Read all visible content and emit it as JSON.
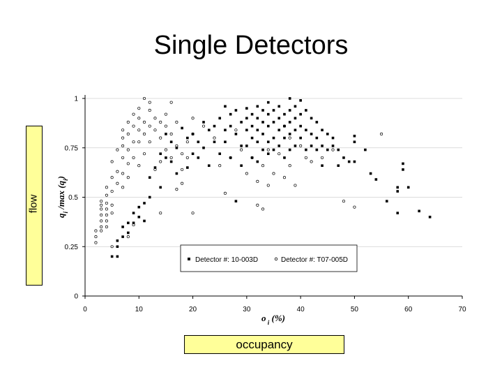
{
  "slide": {
    "title": "Single Detectors",
    "ylabel_box": "flow",
    "xlabel_box": "occupancy"
  },
  "chart_data": {
    "type": "scatter",
    "xlabel": "o i (%)",
    "ylabel": "q i /max (q i )",
    "xlim": [
      0,
      70
    ],
    "ylim": [
      0,
      1
    ],
    "xticks": [
      0,
      10,
      20,
      30,
      40,
      50,
      60,
      70
    ],
    "yticks": [
      0,
      0.25,
      0.5,
      0.75,
      1
    ],
    "ytick_labels": [
      "0",
      "0.25",
      "0.5",
      "0.75",
      "1"
    ],
    "grid": "horizontal",
    "legend_position": "bottom-right",
    "series": [
      {
        "name": "Detector #: 10-003D",
        "marker": "filled-square",
        "color": "#000000",
        "points": [
          [
            5,
            0.2
          ],
          [
            6,
            0.2
          ],
          [
            6,
            0.25
          ],
          [
            6,
            0.28
          ],
          [
            7,
            0.3
          ],
          [
            7,
            0.35
          ],
          [
            8,
            0.32
          ],
          [
            8,
            0.37
          ],
          [
            9,
            0.37
          ],
          [
            9,
            0.42
          ],
          [
            10,
            0.4
          ],
          [
            10,
            0.45
          ],
          [
            11,
            0.47
          ],
          [
            11,
            0.38
          ],
          [
            12,
            0.5
          ],
          [
            12,
            0.6
          ],
          [
            13,
            0.65
          ],
          [
            14,
            0.55
          ],
          [
            14,
            0.72
          ],
          [
            15,
            0.7
          ],
          [
            15,
            0.82
          ],
          [
            16,
            0.68
          ],
          [
            16,
            0.78
          ],
          [
            17,
            0.75
          ],
          [
            17,
            0.62
          ],
          [
            18,
            0.85
          ],
          [
            19,
            0.8
          ],
          [
            19,
            0.65
          ],
          [
            20,
            0.82
          ],
          [
            20,
            0.72
          ],
          [
            21,
            0.78
          ],
          [
            21,
            0.7
          ],
          [
            22,
            0.88
          ],
          [
            22,
            0.75
          ],
          [
            23,
            0.84
          ],
          [
            23,
            0.66
          ],
          [
            24,
            0.86
          ],
          [
            24,
            0.78
          ],
          [
            25,
            0.9
          ],
          [
            25,
            0.72
          ],
          [
            26,
            0.96
          ],
          [
            26,
            0.84
          ],
          [
            26,
            0.78
          ],
          [
            27,
            0.92
          ],
          [
            27,
            0.86
          ],
          [
            27,
            0.7
          ],
          [
            28,
            0.94
          ],
          [
            28,
            0.82
          ],
          [
            28,
            0.48
          ],
          [
            29,
            0.88
          ],
          [
            29,
            0.76
          ],
          [
            29,
            0.66
          ],
          [
            30,
            0.95
          ],
          [
            30,
            0.9
          ],
          [
            30,
            0.84
          ],
          [
            30,
            0.76
          ],
          [
            31,
            0.92
          ],
          [
            31,
            0.86
          ],
          [
            31,
            0.8
          ],
          [
            31,
            0.7
          ],
          [
            32,
            0.96
          ],
          [
            32,
            0.9
          ],
          [
            32,
            0.84
          ],
          [
            32,
            0.78
          ],
          [
            32,
            0.68
          ],
          [
            33,
            0.94
          ],
          [
            33,
            0.88
          ],
          [
            33,
            0.82
          ],
          [
            33,
            0.74
          ],
          [
            34,
            0.98
          ],
          [
            34,
            0.92
          ],
          [
            34,
            0.86
          ],
          [
            34,
            0.78
          ],
          [
            34,
            0.72
          ],
          [
            35,
            0.94
          ],
          [
            35,
            0.88
          ],
          [
            35,
            0.8
          ],
          [
            35,
            0.74
          ],
          [
            36,
            0.96
          ],
          [
            36,
            0.9
          ],
          [
            36,
            0.84
          ],
          [
            36,
            0.76
          ],
          [
            37,
            0.92
          ],
          [
            37,
            0.86
          ],
          [
            37,
            0.8
          ],
          [
            37,
            0.7
          ],
          [
            38,
            1.0
          ],
          [
            38,
            0.94
          ],
          [
            38,
            0.88
          ],
          [
            38,
            0.82
          ],
          [
            38,
            0.74
          ],
          [
            39,
            0.96
          ],
          [
            39,
            0.9
          ],
          [
            39,
            0.84
          ],
          [
            39,
            0.76
          ],
          [
            40,
            0.99
          ],
          [
            40,
            0.92
          ],
          [
            40,
            0.86
          ],
          [
            40,
            0.8
          ],
          [
            41,
            0.94
          ],
          [
            41,
            0.84
          ],
          [
            41,
            0.74
          ],
          [
            42,
            0.9
          ],
          [
            42,
            0.82
          ],
          [
            42,
            0.76
          ],
          [
            43,
            0.88
          ],
          [
            43,
            0.8
          ],
          [
            43,
            0.74
          ],
          [
            44,
            0.84
          ],
          [
            44,
            0.76
          ],
          [
            44,
            0.66
          ],
          [
            45,
            0.82
          ],
          [
            45,
            0.74
          ],
          [
            46,
            0.8
          ],
          [
            46,
            0.76
          ],
          [
            47,
            0.74
          ],
          [
            47,
            0.66
          ],
          [
            48,
            0.7
          ],
          [
            49,
            0.68
          ],
          [
            50,
            0.81
          ],
          [
            50,
            0.78
          ],
          [
            50,
            0.68
          ],
          [
            52,
            0.74
          ],
          [
            53,
            0.62
          ],
          [
            54,
            0.59
          ],
          [
            56,
            0.48
          ],
          [
            58,
            0.55
          ],
          [
            58,
            0.53
          ],
          [
            58,
            0.42
          ],
          [
            59,
            0.67
          ],
          [
            59,
            0.64
          ],
          [
            60,
            0.55
          ],
          [
            62,
            0.43
          ],
          [
            64,
            0.4
          ]
        ]
      },
      {
        "name": "Detector #: T07-005D",
        "marker": "open-circle",
        "color": "#000000",
        "points": [
          [
            2,
            0.27
          ],
          [
            2,
            0.3
          ],
          [
            2,
            0.33
          ],
          [
            3,
            0.33
          ],
          [
            3,
            0.35
          ],
          [
            3,
            0.38
          ],
          [
            3,
            0.41
          ],
          [
            3,
            0.44
          ],
          [
            3,
            0.46
          ],
          [
            3,
            0.48
          ],
          [
            4,
            0.35
          ],
          [
            4,
            0.38
          ],
          [
            4,
            0.41
          ],
          [
            4,
            0.44
          ],
          [
            4,
            0.47
          ],
          [
            4,
            0.51
          ],
          [
            4,
            0.55
          ],
          [
            5,
            0.25
          ],
          [
            5,
            0.42
          ],
          [
            5,
            0.46
          ],
          [
            5,
            0.53
          ],
          [
            5,
            0.6
          ],
          [
            5,
            0.68
          ],
          [
            6,
            0.57
          ],
          [
            6,
            0.63
          ],
          [
            6,
            0.74
          ],
          [
            7,
            0.55
          ],
          [
            7,
            0.62
          ],
          [
            7,
            0.7
          ],
          [
            7,
            0.76
          ],
          [
            7,
            0.8
          ],
          [
            7,
            0.84
          ],
          [
            8,
            0.6
          ],
          [
            8,
            0.67
          ],
          [
            8,
            0.74
          ],
          [
            8,
            0.82
          ],
          [
            8,
            0.88
          ],
          [
            8,
            0.3
          ],
          [
            9,
            0.7
          ],
          [
            9,
            0.78
          ],
          [
            9,
            0.86
          ],
          [
            9,
            0.92
          ],
          [
            9,
            0.36
          ],
          [
            10,
            0.66
          ],
          [
            10,
            0.78
          ],
          [
            10,
            0.84
          ],
          [
            10,
            0.9
          ],
          [
            10,
            0.95
          ],
          [
            11,
            0.72
          ],
          [
            11,
            0.82
          ],
          [
            11,
            0.88
          ],
          [
            11,
            1.0
          ],
          [
            12,
            0.78
          ],
          [
            12,
            0.86
          ],
          [
            12,
            0.94
          ],
          [
            12,
            0.98
          ],
          [
            13,
            0.64
          ],
          [
            13,
            0.84
          ],
          [
            13,
            0.9
          ],
          [
            14,
            0.68
          ],
          [
            14,
            0.8
          ],
          [
            14,
            0.88
          ],
          [
            14,
            0.42
          ],
          [
            15,
            0.74
          ],
          [
            15,
            0.86
          ],
          [
            15,
            0.92
          ],
          [
            16,
            0.7
          ],
          [
            16,
            0.82
          ],
          [
            16,
            0.98
          ],
          [
            17,
            0.54
          ],
          [
            17,
            0.76
          ],
          [
            17,
            0.88
          ],
          [
            18,
            0.64
          ],
          [
            18,
            0.72
          ],
          [
            18,
            0.57
          ],
          [
            19,
            0.7
          ],
          [
            19,
            0.78
          ],
          [
            20,
            0.42
          ],
          [
            20,
            0.82
          ],
          [
            20,
            0.9
          ],
          [
            22,
            0.86
          ],
          [
            24,
            0.8
          ],
          [
            25,
            0.66
          ],
          [
            26,
            0.52
          ],
          [
            27,
            0.7
          ],
          [
            28,
            0.84
          ],
          [
            29,
            0.74
          ],
          [
            30,
            0.62
          ],
          [
            31,
            0.7
          ],
          [
            32,
            0.58
          ],
          [
            32,
            0.46
          ],
          [
            33,
            0.44
          ],
          [
            33,
            0.66
          ],
          [
            34,
            0.56
          ],
          [
            34,
            0.74
          ],
          [
            35,
            0.62
          ],
          [
            36,
            0.72
          ],
          [
            37,
            0.6
          ],
          [
            37,
            0.86
          ],
          [
            38,
            0.66
          ],
          [
            38,
            0.8
          ],
          [
            39,
            0.56
          ],
          [
            40,
            0.76
          ],
          [
            41,
            0.7
          ],
          [
            42,
            0.68
          ],
          [
            44,
            0.7
          ],
          [
            46,
            0.74
          ],
          [
            48,
            0.48
          ],
          [
            50,
            0.45
          ],
          [
            55,
            0.82
          ]
        ]
      }
    ]
  }
}
